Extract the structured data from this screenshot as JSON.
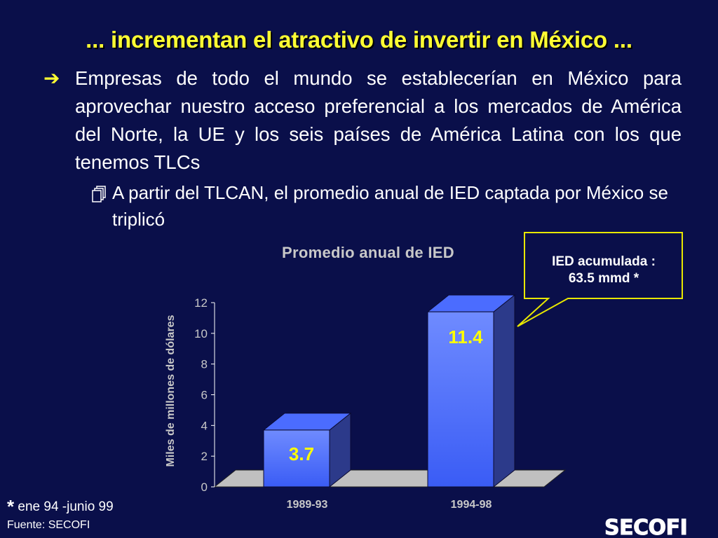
{
  "slide": {
    "title": "... incrementan el atractivo de invertir en México ...",
    "bullet_main": "Empresas de todo el mundo se establecerían en México para aprovechar nuestro acceso preferencial a los mercados de América del Norte, la UE y los seis países de América Latina con los que tenemos TLCs",
    "bullet_sub": "A partir del TLCAN, el promedio anual de IED captada por México se triplicó",
    "callout_line1": "IED acumulada :",
    "callout_line2": "63.5 mmd *",
    "footnote_star": "*",
    "footnote_text": " ene 94 -junio 99",
    "source": "Fuente: SECOFI",
    "logo_text": "SECOFI",
    "title_color": "#ffff33",
    "background_color": "#0a0f4a"
  },
  "chart_data": {
    "type": "bar",
    "title": "Promedio anual de IED",
    "ylabel": "Miles de millones de dólares",
    "xlabel": "",
    "categories": [
      "1989-93",
      "1994-98"
    ],
    "values": [
      3.7,
      11.4
    ],
    "value_labels": [
      "3.7",
      "11.4"
    ],
    "ylim": [
      0,
      12
    ],
    "yticks": [
      0,
      2,
      4,
      6,
      8,
      10,
      12
    ],
    "style": "3d",
    "bar_color": "#3a5cf5",
    "label_color": "#ffff00",
    "grid": false,
    "legend": "none"
  }
}
